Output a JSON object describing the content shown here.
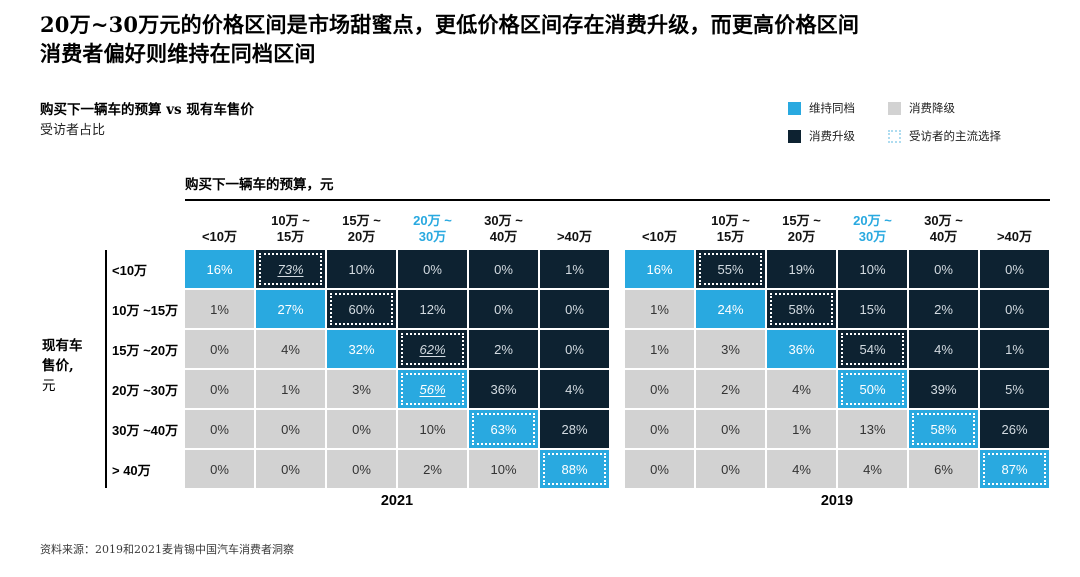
{
  "title": {
    "line1": "20万~30万元的价格区间是市场甜蜜点，更低价格区间存在消费升级，而更高价格区间",
    "line2": "消费者偏好则维持在同档区间"
  },
  "subtitle": {
    "line1": "购买下一辆车的预算 vs 现有车售价",
    "line2": "受访者占比"
  },
  "legend": {
    "items": [
      {
        "key": "maintain",
        "label": "维持同档"
      },
      {
        "key": "downgrade",
        "label": "消费降级"
      },
      {
        "key": "upgrade",
        "label": "消费升级"
      },
      {
        "key": "mainstream",
        "label": "受访者的主流选择"
      }
    ]
  },
  "colors": {
    "maintain_cyan": "#29a9e0",
    "upgrade_navy": "#0d2231",
    "downgrade_gray": "#d2d2d2",
    "legend_dash": "#aedcf0",
    "highlight_header": "#29a9e0"
  },
  "chart_data": {
    "type": "heatmap",
    "title": "购买下一辆车的预算 vs 现有车售价",
    "subtitle": "受访者占比",
    "col_axis_title": "购买下一辆车的预算，元",
    "row_axis_title_lines": [
      "现有车",
      "售价,",
      "元"
    ],
    "columns": [
      [
        "<10万"
      ],
      [
        "10万 ~",
        "15万"
      ],
      [
        "15万 ~",
        "20万"
      ],
      [
        "20万 ~",
        "30万"
      ],
      [
        "30万 ~",
        "40万"
      ],
      [
        ">40万"
      ]
    ],
    "highlight_col": 3,
    "rows": [
      "<10万",
      "10万 ~15万",
      "15万 ~20万",
      "20万 ~30万",
      "30万 ~40万",
      "> 40万"
    ],
    "value_suffix": "%",
    "cell_types_legend": {
      "m": "维持同档",
      "u": "消费升级",
      "d": "消费降级"
    },
    "types": [
      [
        "m",
        "u",
        "u",
        "u",
        "u",
        "u"
      ],
      [
        "d",
        "m",
        "u",
        "u",
        "u",
        "u"
      ],
      [
        "d",
        "d",
        "m",
        "u",
        "u",
        "u"
      ],
      [
        "d",
        "d",
        "d",
        "m",
        "u",
        "u"
      ],
      [
        "d",
        "d",
        "d",
        "d",
        "m",
        "u"
      ],
      [
        "d",
        "d",
        "d",
        "d",
        "d",
        "m"
      ]
    ],
    "matrices": [
      {
        "year": "2021",
        "values": [
          [
            16,
            73,
            10,
            0,
            0,
            1
          ],
          [
            1,
            27,
            60,
            12,
            0,
            0
          ],
          [
            0,
            4,
            32,
            62,
            2,
            0
          ],
          [
            0,
            1,
            3,
            56,
            36,
            4
          ],
          [
            0,
            0,
            0,
            10,
            63,
            28
          ],
          [
            0,
            0,
            0,
            2,
            10,
            88
          ]
        ],
        "dashed_cells": [
          [
            0,
            1
          ],
          [
            1,
            2
          ],
          [
            2,
            3
          ],
          [
            3,
            3
          ],
          [
            4,
            4
          ],
          [
            5,
            5
          ]
        ],
        "emphasized_cells": [
          [
            0,
            1
          ],
          [
            2,
            3
          ],
          [
            3,
            3
          ]
        ]
      },
      {
        "year": "2019",
        "values": [
          [
            16,
            55,
            19,
            10,
            0,
            0
          ],
          [
            1,
            24,
            58,
            15,
            2,
            0
          ],
          [
            1,
            3,
            36,
            54,
            4,
            1
          ],
          [
            0,
            2,
            4,
            50,
            39,
            5
          ],
          [
            0,
            0,
            1,
            13,
            58,
            26
          ],
          [
            0,
            0,
            4,
            4,
            6,
            87
          ]
        ],
        "dashed_cells": [
          [
            0,
            1
          ],
          [
            1,
            2
          ],
          [
            2,
            3
          ],
          [
            3,
            3
          ],
          [
            4,
            4
          ],
          [
            5,
            5
          ]
        ],
        "emphasized_cells": []
      }
    ]
  },
  "footer": {
    "source": "资料来源：2019和2021麦肯锡中国汽车消费者洞察"
  }
}
